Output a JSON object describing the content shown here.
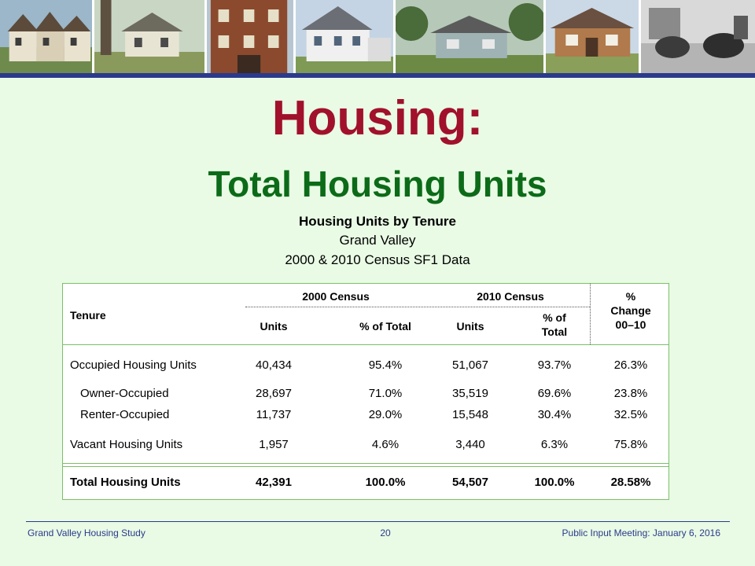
{
  "header": {
    "photos": [
      "townhouse-photo",
      "house-photo",
      "apartment-photo",
      "two-story-house-photo",
      "ranch-house-photo",
      "bungalow-photo",
      "street-scene-photo"
    ]
  },
  "slide": {
    "title": "Housing:",
    "subtitle": "Total Housing Units",
    "caption_line1": "Housing Units by Tenure",
    "caption_line2": "Grand Valley",
    "caption_line3": "2000 & 2010 Census SF1 Data"
  },
  "table": {
    "headers": {
      "tenure": "Tenure",
      "census_2000": "2000 Census",
      "census_2010": "2010 Census",
      "units_2000": "Units",
      "pct_2000": "% of Total",
      "units_2010": "Units",
      "pct_2010_line1": "% of",
      "pct_2010_line2": "Total",
      "change_line1": "%",
      "change_line2": "Change",
      "change_line3": "00–10"
    },
    "rows": [
      {
        "tenure": "Occupied Housing Units",
        "units_2000": "40,434",
        "pct_2000": "95.4%",
        "units_2010": "51,067",
        "pct_2010": "93.7%",
        "change": "26.3%"
      },
      {
        "tenure": "Owner-Occupied",
        "units_2000": "28,697",
        "pct_2000": "71.0%",
        "units_2010": "35,519",
        "pct_2010": "69.6%",
        "change": "23.8%"
      },
      {
        "tenure": "Renter-Occupied",
        "units_2000": "11,737",
        "pct_2000": "29.0%",
        "units_2010": "15,548",
        "pct_2010": "30.4%",
        "change": "32.5%"
      },
      {
        "tenure": "Vacant Housing Units",
        "units_2000": "1,957",
        "pct_2000": "4.6%",
        "units_2010": "3,440",
        "pct_2010": "6.3%",
        "change": "75.8%"
      }
    ],
    "total": {
      "tenure": "Total Housing Units",
      "units_2000": "42,391",
      "pct_2000": "100.0%",
      "units_2010": "54,507",
      "pct_2010": "100.0%",
      "change": "28.58%"
    }
  },
  "footer": {
    "left": "Grand Valley Housing Study",
    "page_number": "20",
    "right": "Public Input Meeting: January 6, 2016"
  },
  "colors": {
    "background": "#e9fbe5",
    "title": "#a1112b",
    "subtitle": "#0c6b18",
    "rule": "#2b3a8c"
  }
}
